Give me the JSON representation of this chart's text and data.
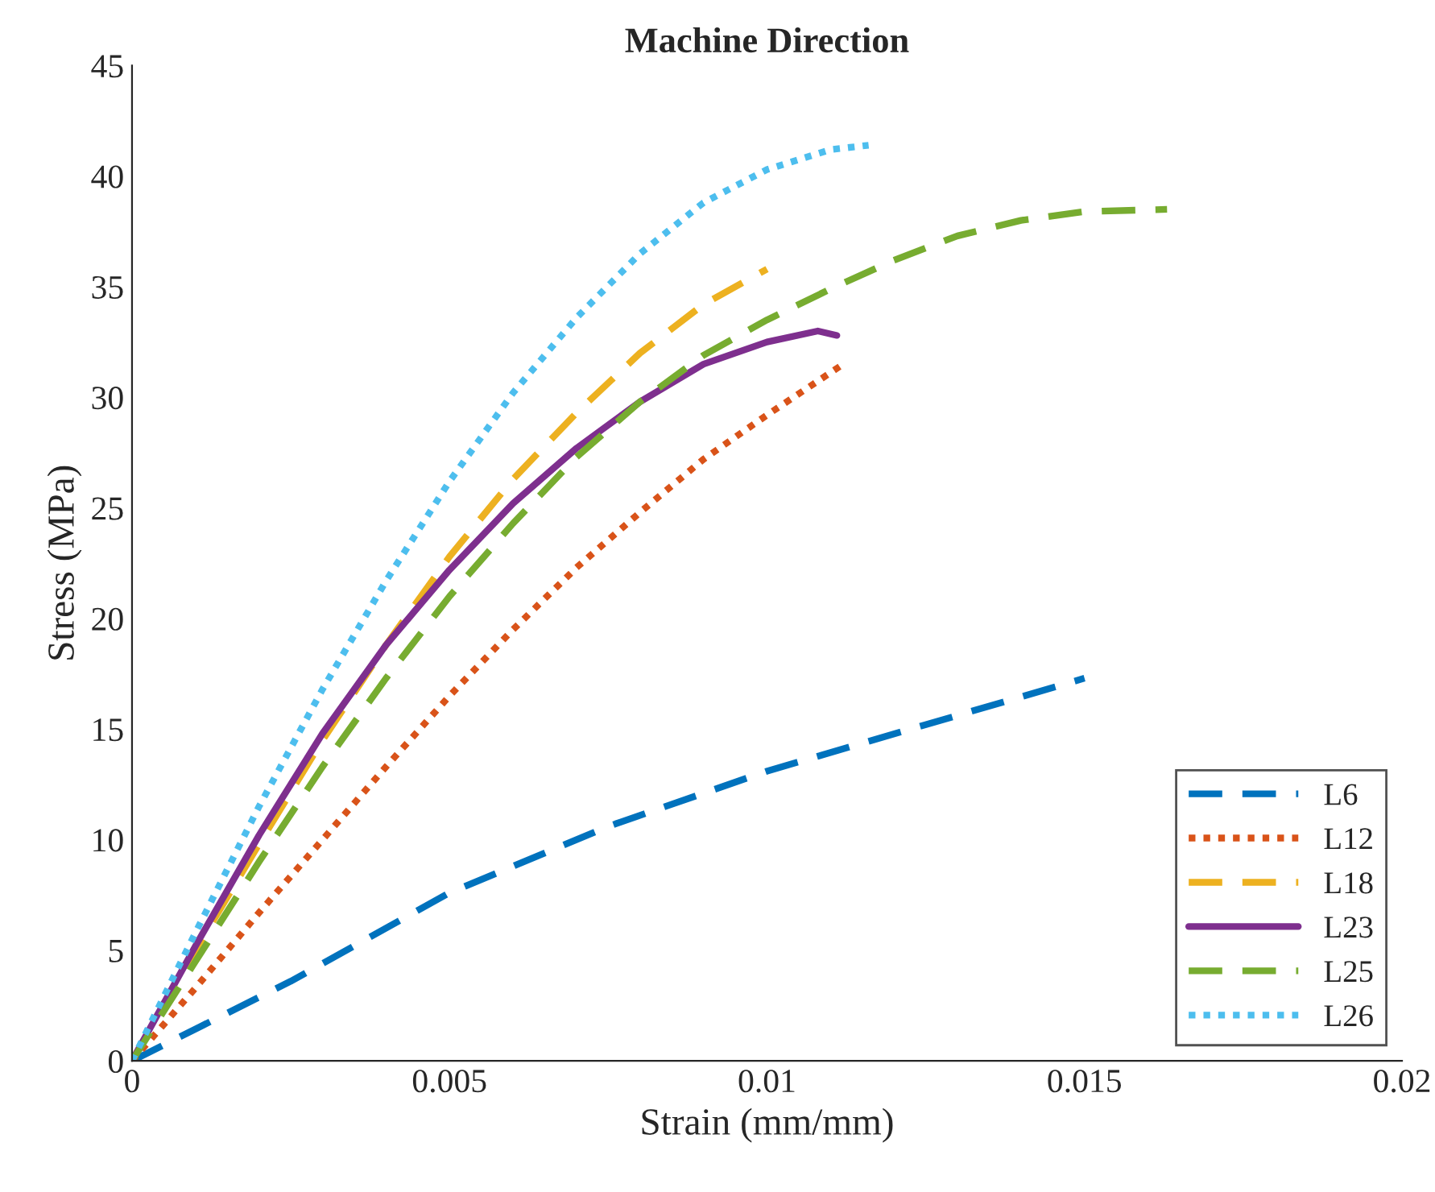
{
  "chart_data": {
    "type": "line",
    "title": "Machine Direction",
    "xlabel": "Strain (mm/mm)",
    "ylabel": "Stress (MPa)",
    "xlim": [
      0,
      0.02
    ],
    "xticks": [
      0,
      0.005,
      0.01,
      0.015,
      0.02
    ],
    "ylim": [
      0,
      45
    ],
    "yticks": [
      0,
      5,
      10,
      15,
      20,
      25,
      30,
      35,
      40,
      45
    ],
    "grid": false,
    "legend": "bottom right",
    "marker": "none",
    "series": [
      {
        "name": "L6",
        "color": "#0072bd",
        "line_style": "dashed",
        "x": [
          0,
          0.0025,
          0.005,
          0.0075,
          0.01,
          0.0125,
          0.015
        ],
        "values": [
          0,
          3.6,
          7.6,
          10.6,
          13.1,
          15.2,
          17.3
        ]
      },
      {
        "name": "L12",
        "color": "#d95319",
        "line_style": "dotted",
        "x": [
          0,
          0.001,
          0.002,
          0.003,
          0.004,
          0.005,
          0.006,
          0.007,
          0.008,
          0.009,
          0.01,
          0.0112
        ],
        "values": [
          0,
          3.3,
          6.7,
          10,
          13.3,
          16.5,
          19.5,
          22.3,
          24.8,
          27.2,
          29.2,
          31.5
        ]
      },
      {
        "name": "L18",
        "color": "#edb120",
        "line_style": "dashed",
        "x": [
          0,
          0.001,
          0.002,
          0.003,
          0.004,
          0.005,
          0.006,
          0.007,
          0.008,
          0.009,
          0.01
        ],
        "values": [
          0,
          5,
          9.8,
          14.5,
          18.8,
          22.8,
          26.3,
          29.3,
          32,
          34.2,
          35.8
        ]
      },
      {
        "name": "L23",
        "color": "#7e2f8e",
        "line_style": "solid",
        "x": [
          0,
          0.001,
          0.002,
          0.003,
          0.004,
          0.005,
          0.006,
          0.007,
          0.008,
          0.009,
          0.01,
          0.0108,
          0.0111
        ],
        "values": [
          0,
          5.2,
          10.2,
          14.8,
          18.8,
          22.2,
          25.2,
          27.7,
          29.8,
          31.5,
          32.5,
          33,
          32.8
        ]
      },
      {
        "name": "L25",
        "color": "#77ac30",
        "line_style": "dashed",
        "x": [
          0,
          0.001,
          0.002,
          0.003,
          0.004,
          0.005,
          0.006,
          0.007,
          0.008,
          0.009,
          0.01,
          0.011,
          0.012,
          0.013,
          0.014,
          0.015,
          0.0163
        ],
        "values": [
          0,
          4.5,
          9,
          13.3,
          17.3,
          21,
          24.3,
          27.3,
          29.8,
          31.9,
          33.5,
          34.9,
          36.2,
          37.3,
          38,
          38.4,
          38.5
        ]
      },
      {
        "name": "L26",
        "color": "#4dbeee",
        "line_style": "dotted",
        "x": [
          0,
          0.001,
          0.002,
          0.003,
          0.004,
          0.005,
          0.006,
          0.007,
          0.008,
          0.009,
          0.01,
          0.011,
          0.0116
        ],
        "values": [
          0,
          5.8,
          11.5,
          16.8,
          21.7,
          26.2,
          30.2,
          33.6,
          36.5,
          38.8,
          40.3,
          41.2,
          41.4
        ]
      }
    ]
  }
}
